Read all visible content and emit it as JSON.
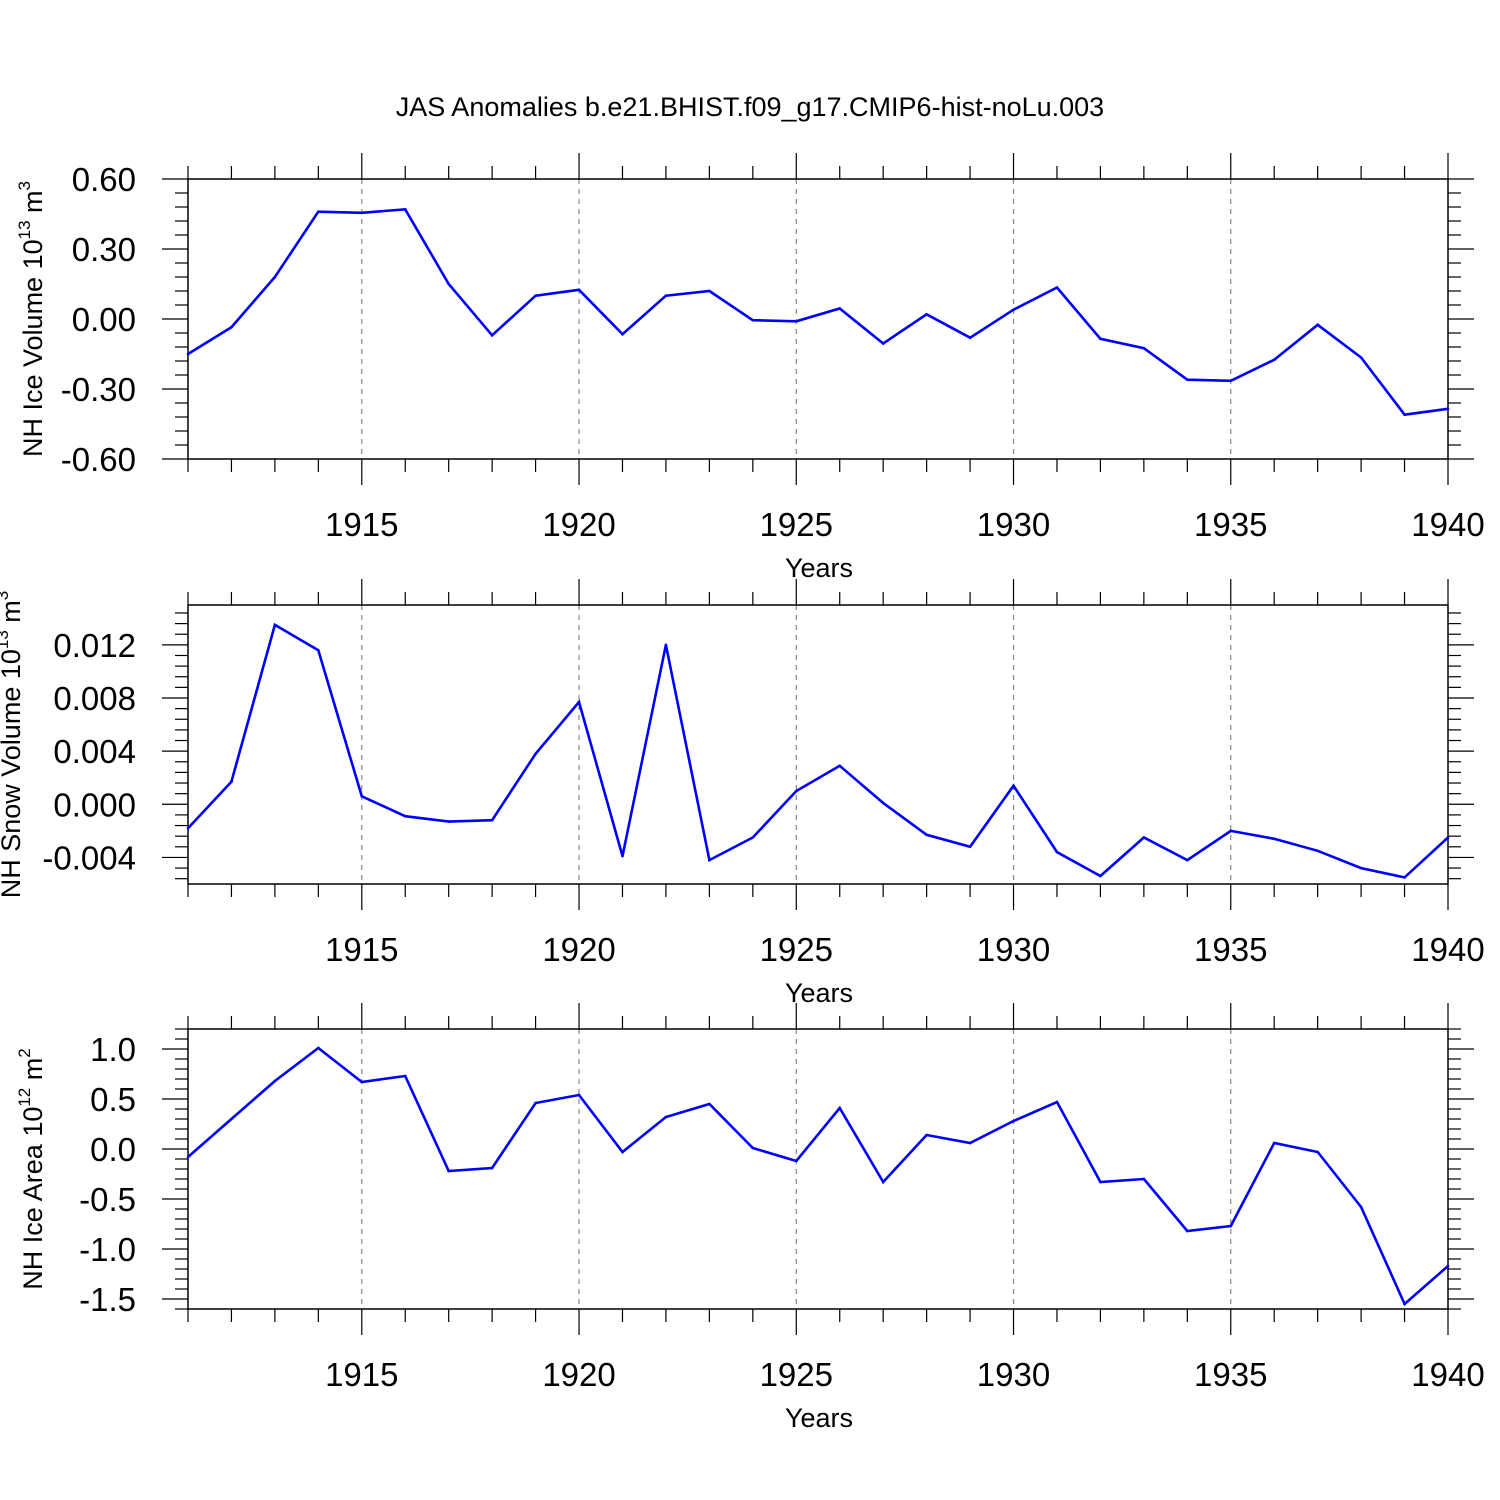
{
  "title": "JAS Anomalies b.e21.BHIST.f09_g17.CMIP6-hist-noLu.003",
  "colors": {
    "series": "#0000ff",
    "axis": "#000000",
    "grid": "#888888"
  },
  "chart_data": [
    {
      "type": "line",
      "ylabel": "NH Ice Volume 10",
      "ylabel_sup": "13",
      "ylabel_unit": "m",
      "ylabel_unit_sup": "3",
      "xlabel": "Years",
      "xlim": [
        1911,
        1940
      ],
      "ylim": [
        -0.6,
        0.6
      ],
      "xticks": [
        1915,
        1920,
        1925,
        1930,
        1935,
        1940
      ],
      "yticks": [
        -0.6,
        -0.3,
        0.0,
        0.3,
        0.6
      ],
      "ytick_labels": [
        "-0.60",
        "-0.30",
        "0.00",
        "0.30",
        "0.60"
      ],
      "x": [
        1911,
        1912,
        1913,
        1914,
        1915,
        1916,
        1917,
        1918,
        1919,
        1920,
        1921,
        1922,
        1923,
        1924,
        1925,
        1926,
        1927,
        1928,
        1929,
        1930,
        1931,
        1932,
        1933,
        1934,
        1935,
        1936,
        1937,
        1938,
        1939,
        1940
      ],
      "values": [
        -0.15,
        -0.035,
        0.18,
        0.46,
        0.455,
        0.47,
        0.15,
        -0.07,
        0.1,
        0.125,
        -0.065,
        0.1,
        0.12,
        -0.005,
        -0.01,
        0.045,
        -0.105,
        0.02,
        -0.08,
        0.04,
        0.135,
        -0.085,
        -0.125,
        -0.26,
        -0.265,
        -0.175,
        -0.025,
        -0.165,
        -0.41,
        -0.385
      ]
    },
    {
      "type": "line",
      "ylabel": "NH Snow Volume 10",
      "ylabel_sup": "13",
      "ylabel_unit": "m",
      "ylabel_unit_sup": "3",
      "xlabel": "Years",
      "xlim": [
        1911,
        1940
      ],
      "ylim": [
        -0.006,
        0.015
      ],
      "xticks": [
        1915,
        1920,
        1925,
        1930,
        1935,
        1940
      ],
      "yticks": [
        -0.004,
        0.0,
        0.004,
        0.008,
        0.012
      ],
      "ytick_labels": [
        "-0.004",
        "0.000",
        "0.004",
        "0.008",
        "0.012"
      ],
      "x": [
        1911,
        1912,
        1913,
        1914,
        1915,
        1916,
        1917,
        1918,
        1919,
        1920,
        1921,
        1922,
        1923,
        1924,
        1925,
        1926,
        1927,
        1928,
        1929,
        1930,
        1931,
        1932,
        1933,
        1934,
        1935,
        1936,
        1937,
        1938,
        1939,
        1940
      ],
      "values": [
        -0.0018,
        0.0017,
        0.0135,
        0.0116,
        0.0006,
        -0.0009,
        -0.0013,
        -0.0012,
        0.0038,
        0.0077,
        -0.0039,
        0.012,
        -0.0042,
        -0.0025,
        0.001,
        0.0029,
        0.0001,
        -0.0023,
        -0.0032,
        0.0014,
        -0.0036,
        -0.0054,
        -0.0025,
        -0.0042,
        -0.002,
        -0.0026,
        -0.0035,
        -0.0048,
        -0.0055,
        -0.0025
      ]
    },
    {
      "type": "line",
      "ylabel": "NH Ice Area 10",
      "ylabel_sup": "12",
      "ylabel_unit": "m",
      "ylabel_unit_sup": "2",
      "xlabel": "Years",
      "xlim": [
        1911,
        1940
      ],
      "ylim": [
        -1.6,
        1.2
      ],
      "xticks": [
        1915,
        1920,
        1925,
        1930,
        1935,
        1940
      ],
      "yticks": [
        -1.5,
        -1.0,
        -0.5,
        0.0,
        0.5,
        1.0
      ],
      "ytick_labels": [
        "-1.5",
        "-1.0",
        "-0.5",
        "0.0",
        "0.5",
        "1.0"
      ],
      "x": [
        1911,
        1912,
        1913,
        1914,
        1915,
        1916,
        1917,
        1918,
        1919,
        1920,
        1921,
        1922,
        1923,
        1924,
        1925,
        1926,
        1927,
        1928,
        1929,
        1930,
        1931,
        1932,
        1933,
        1934,
        1935,
        1936,
        1937,
        1938,
        1939,
        1940
      ],
      "values": [
        -0.08,
        0.3,
        0.68,
        1.01,
        0.67,
        0.73,
        -0.22,
        -0.19,
        0.46,
        0.54,
        -0.03,
        0.32,
        0.45,
        0.01,
        -0.12,
        0.41,
        -0.33,
        0.14,
        0.06,
        0.28,
        0.47,
        -0.33,
        -0.3,
        -0.82,
        -0.77,
        0.06,
        -0.03,
        -0.58,
        -1.55,
        -1.17
      ]
    }
  ]
}
